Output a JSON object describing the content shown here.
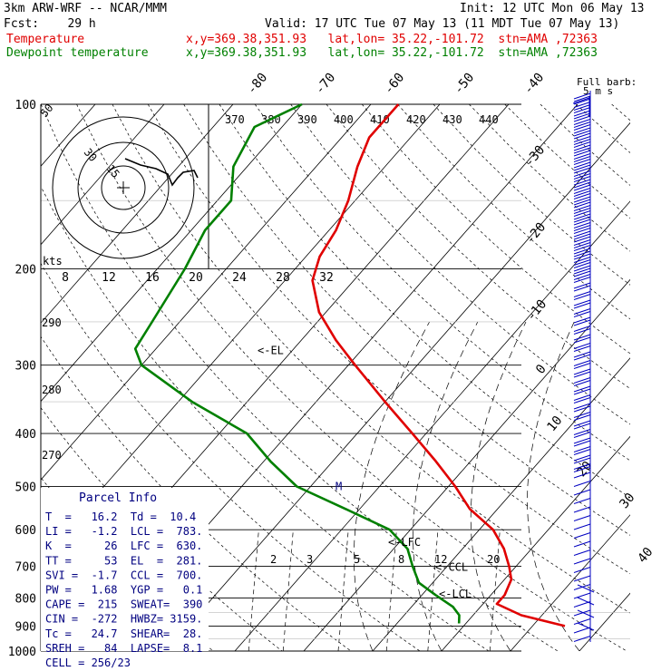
{
  "header": {
    "model": "3km ARW-WRF -- NCAR/MMM",
    "init": "Init: 12 UTC Mon 06 May 13",
    "fcst": "Fcst:    29 h",
    "valid": "Valid: 17 UTC Tue 07 May 13 (11 MDT Tue 07 May 13)",
    "temp_label": "Temperature",
    "temp_loc": "x,y=369.38,351.93   lat,lon= 35.22,-101.72  stn=AMA ,72363",
    "dew_label": "Dewpoint temperature",
    "dew_loc": "x,y=369.38,351.93   lat,lon= 35.22,-101.72  stn=AMA ,72363"
  },
  "colors": {
    "temperature": "#e00000",
    "dewpoint": "#008000",
    "barbs": "#0000c0",
    "text_blue": "#000080"
  },
  "chart_data": {
    "type": "line",
    "pressure_levels": [
      "100",
      "200",
      "300",
      "400",
      "500",
      "600",
      "700",
      "800",
      "900",
      "1000"
    ],
    "isotherm_labels": [
      "-80",
      "-70",
      "-60",
      "-50",
      "-40",
      "-30",
      "-20",
      "-10",
      "0",
      "10",
      "20",
      "30",
      "40"
    ],
    "theta_labels_top": [
      "370",
      "380",
      "390",
      "400",
      "410",
      "420",
      "430",
      "440"
    ],
    "theta_labels_left": [
      "290",
      "280",
      "270"
    ],
    "mixing_ratio_labels": [
      "2",
      "3",
      "5",
      "8",
      "12",
      "20"
    ],
    "hodo_speed_labels": [
      "8",
      "12",
      "16",
      "20",
      "24",
      "28",
      "32"
    ],
    "hodo_units": "kts",
    "hodo_ring_labels": [
      "30",
      "15"
    ],
    "hodo_corner_label": "50",
    "annotations": [
      {
        "text": "<-EL",
        "p": 281
      },
      {
        "text": "M",
        "p": 500
      },
      {
        "text": "<-LFC",
        "p": 630
      },
      {
        "text": "<-CCL",
        "p": 700
      },
      {
        "text": "<-LCL",
        "p": 783
      }
    ],
    "series": [
      {
        "name": "Temperature",
        "points": [
          [
            100,
            -66
          ],
          [
            115,
            -66
          ],
          [
            130,
            -64
          ],
          [
            150,
            -61
          ],
          [
            170,
            -59
          ],
          [
            190,
            -58
          ],
          [
            210,
            -56
          ],
          [
            240,
            -51
          ],
          [
            270,
            -45
          ],
          [
            300,
            -39
          ],
          [
            350,
            -30
          ],
          [
            400,
            -22
          ],
          [
            450,
            -15
          ],
          [
            500,
            -9
          ],
          [
            550,
            -4
          ],
          [
            600,
            2
          ],
          [
            650,
            6
          ],
          [
            700,
            9
          ],
          [
            740,
            11
          ],
          [
            790,
            12
          ],
          [
            820,
            12
          ],
          [
            860,
            17
          ],
          [
            900,
            24.7
          ]
        ]
      },
      {
        "name": "Dewpoint temperature",
        "points": [
          [
            100,
            -80
          ],
          [
            110,
            -84
          ],
          [
            130,
            -82
          ],
          [
            150,
            -78
          ],
          [
            170,
            -78
          ],
          [
            200,
            -76
          ],
          [
            250,
            -74
          ],
          [
            280,
            -73
          ],
          [
            300,
            -70
          ],
          [
            350,
            -58
          ],
          [
            400,
            -46
          ],
          [
            450,
            -39
          ],
          [
            500,
            -32
          ],
          [
            550,
            -22
          ],
          [
            600,
            -13
          ],
          [
            650,
            -8
          ],
          [
            700,
            -5
          ],
          [
            750,
            -2
          ],
          [
            790,
            2
          ],
          [
            830,
            6
          ],
          [
            860,
            8
          ],
          [
            890,
            9
          ]
        ]
      }
    ],
    "xlim": [
      -40,
      40
    ],
    "ylim": [
      100,
      1000
    ]
  },
  "parcel": {
    "title": "Parcel Info",
    "rows": [
      "T  =   16.2  Td =  10.4",
      "LI =   -1.2  LCL =  783.",
      "K  =     26  LFC =  630.",
      "TT =     53  EL  =  281.",
      "SVI =  -1.7  CCL =  700.",
      "PW =   1.68  YGP =   0.1",
      "CAPE =  215  SWEAT=  390",
      "CIN =  -272  HWBZ= 3159.",
      "Tc =   24.7  SHEAR=  28.",
      "SREH =   84  LAPSE=  8.1",
      "CELL = 256/23"
    ]
  },
  "barbs": {
    "title": "Full barb:",
    "unit": "5 m s"
  }
}
